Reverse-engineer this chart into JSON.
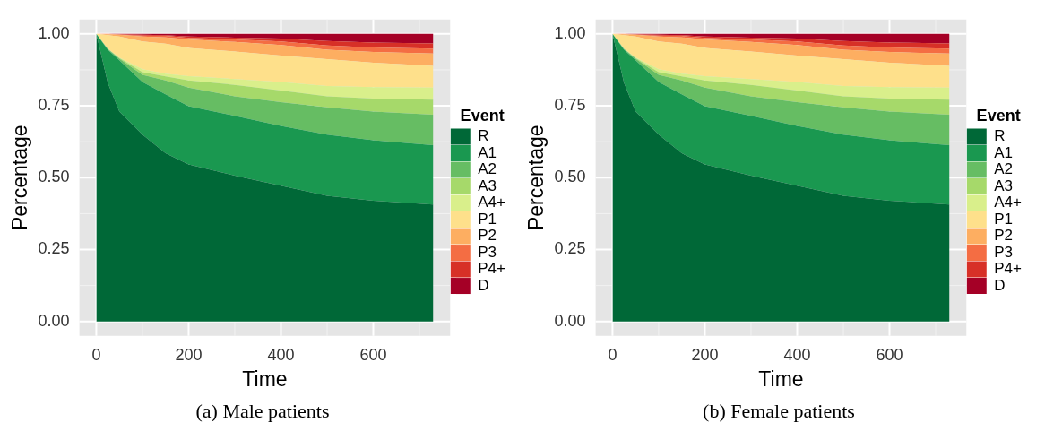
{
  "chart_data": [
    {
      "type": "area",
      "stacked": true,
      "xlabel": "Time",
      "ylabel": "Percentage",
      "legend_title": "Event",
      "legend": "right",
      "grid": true,
      "annotations": [
        "(a) Male patients"
      ],
      "x": [
        0,
        25,
        50,
        100,
        150,
        200,
        300,
        400,
        500,
        600,
        730
      ],
      "xlim": [
        -36.5,
        766.5
      ],
      "ylim": [
        -0.05,
        1.05
      ],
      "xticks": [
        0,
        200,
        400,
        600
      ],
      "yticks": [
        {
          "value": 0,
          "label": "0.00"
        },
        {
          "value": 0.25,
          "label": "0.25"
        },
        {
          "value": 0.5,
          "label": "0.50"
        },
        {
          "value": 0.75,
          "label": "0.75"
        },
        {
          "value": 1,
          "label": "1.00"
        }
      ],
      "series": [
        {
          "name": "R",
          "color": "#006837",
          "values": [
            1,
            0.83,
            0.73,
            0.65,
            0.585,
            0.546,
            0.507,
            0.472,
            0.437,
            0.42,
            0.407
          ]
        },
        {
          "name": "A1",
          "color": "#1a9850",
          "values": [
            0,
            0.115,
            0.178,
            0.183,
            0.205,
            0.203,
            0.208,
            0.208,
            0.213,
            0.21,
            0.206
          ]
        },
        {
          "name": "A2",
          "color": "#66bd63",
          "values": [
            0,
            0.002,
            0.006,
            0.025,
            0.048,
            0.064,
            0.068,
            0.083,
            0.095,
            0.1,
            0.106
          ]
        },
        {
          "name": "A3",
          "color": "#a6d96a",
          "values": [
            0,
            0.001,
            0.002,
            0.009,
            0.014,
            0.025,
            0.04,
            0.04,
            0.038,
            0.045,
            0.052
          ]
        },
        {
          "name": "A4+",
          "color": "#d9ef8b",
          "values": [
            0,
            0.001,
            0.002,
            0.01,
            0.01,
            0.015,
            0.02,
            0.03,
            0.036,
            0.04,
            0.042
          ]
        },
        {
          "name": "P1",
          "color": "#fee08b",
          "values": [
            0,
            0.047,
            0.073,
            0.097,
            0.104,
            0.098,
            0.096,
            0.092,
            0.093,
            0.085,
            0.076
          ]
        },
        {
          "name": "P2",
          "color": "#fdae61",
          "values": [
            0,
            0.003,
            0.006,
            0.017,
            0.022,
            0.03,
            0.033,
            0.036,
            0.033,
            0.037,
            0.043
          ]
        },
        {
          "name": "P3",
          "color": "#f46d43",
          "values": [
            0,
            0.001,
            0.001,
            0.003,
            0.005,
            0.005,
            0.009,
            0.013,
            0.015,
            0.016,
            0.017
          ]
        },
        {
          "name": "P4+",
          "color": "#d73027",
          "values": [
            0,
            0,
            0.001,
            0.003,
            0.003,
            0.005,
            0.006,
            0.01,
            0.015,
            0.017,
            0.018
          ]
        },
        {
          "name": "D",
          "color": "#a50026",
          "values": [
            0,
            0,
            0.001,
            0.003,
            0.004,
            0.009,
            0.013,
            0.016,
            0.025,
            0.03,
            0.033
          ]
        }
      ]
    },
    {
      "type": "area",
      "stacked": true,
      "xlabel": "Time",
      "ylabel": "Percentage",
      "legend_title": "Event",
      "legend": "right",
      "grid": true,
      "annotations": [
        "(b) Female patients"
      ],
      "x": [
        0,
        25,
        50,
        100,
        150,
        200,
        300,
        400,
        500,
        600,
        730
      ],
      "xlim": [
        -36.5,
        766.5
      ],
      "ylim": [
        -0.05,
        1.05
      ],
      "xticks": [
        0,
        200,
        400,
        600
      ],
      "yticks": [
        {
          "value": 0,
          "label": "0.00"
        },
        {
          "value": 0.25,
          "label": "0.25"
        },
        {
          "value": 0.5,
          "label": "0.50"
        },
        {
          "value": 0.75,
          "label": "0.75"
        },
        {
          "value": 1,
          "label": "1.00"
        }
      ],
      "series": [
        {
          "name": "R",
          "color": "#006837",
          "values": [
            1,
            0.83,
            0.73,
            0.65,
            0.585,
            0.546,
            0.507,
            0.472,
            0.437,
            0.42,
            0.407
          ]
        },
        {
          "name": "A1",
          "color": "#1a9850",
          "values": [
            0,
            0.115,
            0.178,
            0.183,
            0.205,
            0.203,
            0.208,
            0.208,
            0.213,
            0.21,
            0.206
          ]
        },
        {
          "name": "A2",
          "color": "#66bd63",
          "values": [
            0,
            0.002,
            0.006,
            0.025,
            0.048,
            0.064,
            0.068,
            0.083,
            0.095,
            0.1,
            0.106
          ]
        },
        {
          "name": "A3",
          "color": "#a6d96a",
          "values": [
            0,
            0.001,
            0.002,
            0.009,
            0.014,
            0.025,
            0.04,
            0.04,
            0.038,
            0.045,
            0.052
          ]
        },
        {
          "name": "A4+",
          "color": "#d9ef8b",
          "values": [
            0,
            0.001,
            0.002,
            0.01,
            0.01,
            0.015,
            0.02,
            0.03,
            0.036,
            0.04,
            0.042
          ]
        },
        {
          "name": "P1",
          "color": "#fee08b",
          "values": [
            0,
            0.047,
            0.073,
            0.097,
            0.104,
            0.098,
            0.096,
            0.092,
            0.093,
            0.085,
            0.076
          ]
        },
        {
          "name": "P2",
          "color": "#fdae61",
          "values": [
            0,
            0.003,
            0.006,
            0.017,
            0.022,
            0.03,
            0.033,
            0.036,
            0.033,
            0.037,
            0.043
          ]
        },
        {
          "name": "P3",
          "color": "#f46d43",
          "values": [
            0,
            0.001,
            0.001,
            0.003,
            0.005,
            0.005,
            0.009,
            0.013,
            0.015,
            0.016,
            0.017
          ]
        },
        {
          "name": "P4+",
          "color": "#d73027",
          "values": [
            0,
            0,
            0.001,
            0.003,
            0.003,
            0.005,
            0.006,
            0.01,
            0.015,
            0.017,
            0.018
          ]
        },
        {
          "name": "D",
          "color": "#a50026",
          "values": [
            0,
            0,
            0.001,
            0.003,
            0.004,
            0.009,
            0.013,
            0.016,
            0.025,
            0.03,
            0.033
          ]
        }
      ]
    }
  ]
}
